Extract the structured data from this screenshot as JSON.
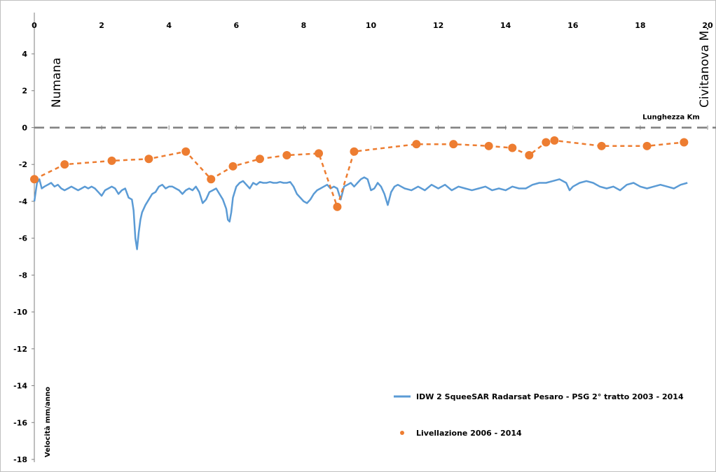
{
  "chart_data": {
    "type": "line",
    "title": "",
    "xlabel": "Lunghezza Km",
    "ylabel": "Velocità mm/anno",
    "xlim": [
      0,
      20
    ],
    "ylim": [
      -18,
      5
    ],
    "x_ticks": [
      0,
      2,
      4,
      6,
      8,
      10,
      12,
      14,
      16,
      18,
      20
    ],
    "y_ticks": [
      4,
      2,
      0,
      -2,
      -4,
      -6,
      -8,
      -10,
      -12,
      -14,
      -16,
      -18
    ],
    "x_axis_position": "top",
    "zero_line": "dashed",
    "grid": false,
    "legend_position": "bottom-right",
    "annotations": [
      {
        "text": "Numana",
        "x": 0.6,
        "orientation": "vertical"
      },
      {
        "text": "Civitanova M.",
        "x": 19.85,
        "orientation": "vertical"
      }
    ],
    "series": [
      {
        "name": "IDW 2 SqueeSAR Radarsat Pesaro - PSG 2° tratto 2003 - 2014",
        "color": "#5b9bd5",
        "style": "solid",
        "x": [
          0,
          0.08,
          0.15,
          0.22,
          0.3,
          0.4,
          0.5,
          0.6,
          0.7,
          0.8,
          0.9,
          1.0,
          1.1,
          1.2,
          1.3,
          1.4,
          1.5,
          1.6,
          1.7,
          1.8,
          1.9,
          2.0,
          2.1,
          2.2,
          2.3,
          2.4,
          2.5,
          2.6,
          2.7,
          2.8,
          2.9,
          2.95,
          3.0,
          3.05,
          3.1,
          3.15,
          3.2,
          3.3,
          3.4,
          3.5,
          3.6,
          3.7,
          3.8,
          3.9,
          4.0,
          4.1,
          4.2,
          4.3,
          4.4,
          4.5,
          4.6,
          4.7,
          4.8,
          4.9,
          5.0,
          5.1,
          5.2,
          5.3,
          5.4,
          5.5,
          5.6,
          5.7,
          5.75,
          5.8,
          5.85,
          5.9,
          6.0,
          6.1,
          6.2,
          6.3,
          6.4,
          6.5,
          6.6,
          6.7,
          6.8,
          6.9,
          7.0,
          7.1,
          7.2,
          7.3,
          7.4,
          7.5,
          7.6,
          7.7,
          7.8,
          7.9,
          8.0,
          8.1,
          8.2,
          8.3,
          8.4,
          8.5,
          8.6,
          8.7,
          8.8,
          8.9,
          9.0,
          9.1,
          9.2,
          9.3,
          9.4,
          9.5,
          9.6,
          9.7,
          9.8,
          9.9,
          10.0,
          10.1,
          10.2,
          10.3,
          10.4,
          10.5,
          10.6,
          10.7,
          10.8,
          10.9,
          11.0,
          11.2,
          11.4,
          11.6,
          11.8,
          12.0,
          12.2,
          12.4,
          12.6,
          12.8,
          13.0,
          13.2,
          13.4,
          13.6,
          13.8,
          14.0,
          14.2,
          14.4,
          14.6,
          14.8,
          15.0,
          15.2,
          15.4,
          15.6,
          15.8,
          15.9,
          16.0,
          16.2,
          16.4,
          16.6,
          16.8,
          17.0,
          17.2,
          17.4,
          17.6,
          17.8,
          18.0,
          18.2,
          18.4,
          18.6,
          18.8,
          19.0,
          19.2,
          19.4
        ],
        "values": [
          -4.0,
          -3.0,
          -2.8,
          -3.3,
          -3.2,
          -3.1,
          -3.0,
          -3.2,
          -3.1,
          -3.3,
          -3.4,
          -3.3,
          -3.2,
          -3.3,
          -3.4,
          -3.3,
          -3.2,
          -3.3,
          -3.2,
          -3.3,
          -3.5,
          -3.7,
          -3.4,
          -3.3,
          -3.2,
          -3.3,
          -3.6,
          -3.4,
          -3.3,
          -3.8,
          -3.9,
          -4.5,
          -6.0,
          -6.6,
          -5.7,
          -5.0,
          -4.6,
          -4.2,
          -3.9,
          -3.6,
          -3.5,
          -3.2,
          -3.1,
          -3.3,
          -3.2,
          -3.2,
          -3.3,
          -3.4,
          -3.6,
          -3.4,
          -3.3,
          -3.4,
          -3.2,
          -3.5,
          -4.1,
          -3.9,
          -3.5,
          -3.4,
          -3.3,
          -3.6,
          -3.9,
          -4.4,
          -5.0,
          -5.1,
          -4.6,
          -3.8,
          -3.2,
          -3.0,
          -2.9,
          -3.1,
          -3.3,
          -3.0,
          -3.1,
          -2.95,
          -3.0,
          -3.0,
          -2.95,
          -3.0,
          -3.0,
          -2.95,
          -3.0,
          -3.0,
          -2.95,
          -3.2,
          -3.6,
          -3.8,
          -4.0,
          -4.1,
          -3.9,
          -3.6,
          -3.4,
          -3.3,
          -3.2,
          -3.1,
          -3.3,
          -3.2,
          -3.3,
          -3.9,
          -3.2,
          -3.1,
          -3.0,
          -3.2,
          -3.0,
          -2.8,
          -2.7,
          -2.8,
          -3.4,
          -3.3,
          -3.0,
          -3.2,
          -3.6,
          -4.2,
          -3.5,
          -3.2,
          -3.1,
          -3.2,
          -3.3,
          -3.4,
          -3.2,
          -3.4,
          -3.1,
          -3.3,
          -3.1,
          -3.4,
          -3.2,
          -3.3,
          -3.4,
          -3.3,
          -3.2,
          -3.4,
          -3.3,
          -3.4,
          -3.2,
          -3.3,
          -3.3,
          -3.1,
          -3.0,
          -3.0,
          -2.9,
          -2.8,
          -3.0,
          -3.4,
          -3.2,
          -3.0,
          -2.9,
          -3.0,
          -3.2,
          -3.3,
          -3.2,
          -3.4,
          -3.1,
          -3.0,
          -3.2,
          -3.3,
          -3.2,
          -3.1,
          -3.2,
          -3.3,
          -3.1,
          -3.0
        ]
      },
      {
        "name": "Livellazione 2006 - 2014",
        "color": "#ed7d31",
        "style": "dashed-with-markers",
        "x": [
          0.0,
          0.9,
          2.3,
          3.4,
          4.5,
          5.25,
          5.9,
          6.7,
          7.5,
          8.45,
          9.0,
          9.5,
          11.35,
          12.45,
          13.5,
          14.2,
          14.7,
          15.2,
          15.45,
          16.85,
          18.2,
          19.3
        ],
        "values": [
          -2.8,
          -2.0,
          -1.8,
          -1.7,
          -1.3,
          -2.8,
          -2.1,
          -1.7,
          -1.5,
          -1.4,
          -4.3,
          -1.3,
          -0.9,
          -0.9,
          -1.0,
          -1.1,
          -1.5,
          -0.8,
          -0.7,
          -1.0,
          -1.0,
          -0.8
        ]
      }
    ]
  }
}
